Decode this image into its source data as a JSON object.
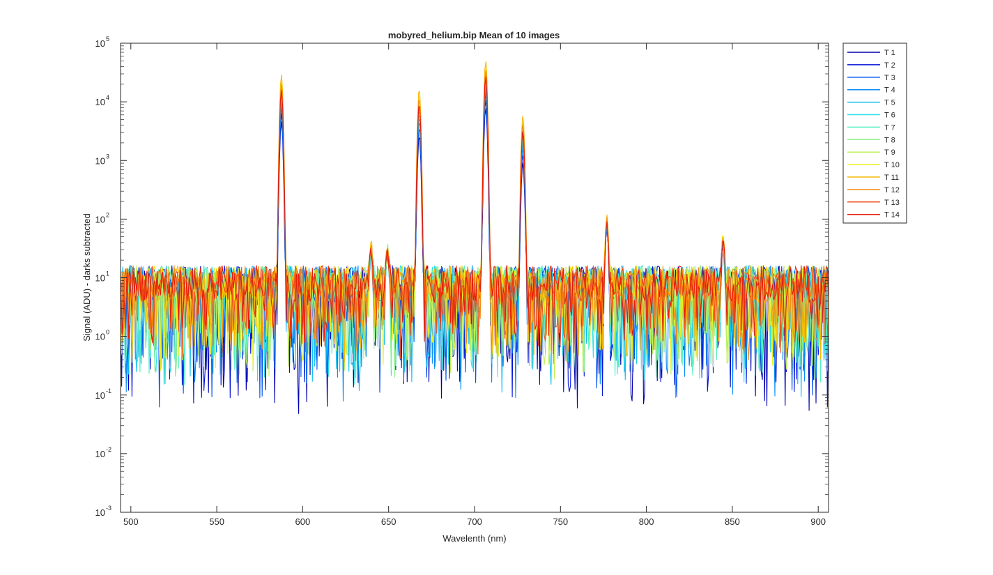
{
  "chart_data": {
    "type": "line",
    "title": "mobyred_helium.bip  Mean of 10 images",
    "xlabel": "Wavelenth (nm)",
    "ylabel": "Signal (ADU) - darks subtracted",
    "xlim": [
      494,
      906
    ],
    "ylim": [
      0.001,
      100000
    ],
    "yscale": "log",
    "grid": false,
    "legend_position": "outside-top-right",
    "x_ticks": [
      500,
      550,
      600,
      650,
      700,
      750,
      800,
      850,
      900
    ],
    "y_ticks": [
      {
        "value": 0.001,
        "mantissa": "10",
        "exponent": "-3"
      },
      {
        "value": 0.01,
        "mantissa": "10",
        "exponent": "-2"
      },
      {
        "value": 0.1,
        "mantissa": "10",
        "exponent": "-1"
      },
      {
        "value": 1,
        "mantissa": "10",
        "exponent": "0"
      },
      {
        "value": 10,
        "mantissa": "10",
        "exponent": "1"
      },
      {
        "value": 100,
        "mantissa": "10",
        "exponent": "2"
      },
      {
        "value": 1000,
        "mantissa": "10",
        "exponent": "3"
      },
      {
        "value": 10000,
        "mantissa": "10",
        "exponent": "4"
      },
      {
        "value": 100000,
        "mantissa": "10",
        "exponent": "5"
      }
    ],
    "baseline_level": 8,
    "emission_lines": [
      {
        "wavelength": 587.6,
        "peak": 29000
      },
      {
        "wavelength": 667.8,
        "peak": 17000
      },
      {
        "wavelength": 706.5,
        "peak": 50000
      },
      {
        "wavelength": 728.1,
        "peak": 5900
      },
      {
        "wavelength": 777.0,
        "peak": 110
      },
      {
        "wavelength": 844.6,
        "peak": 50
      },
      {
        "wavelength": 639.7,
        "peak": 35
      },
      {
        "wavelength": 649.3,
        "peak": 30
      }
    ],
    "series": [
      {
        "name": "T 1",
        "color": "#0000b0",
        "peak_scale": 0.16
      },
      {
        "name": "T 2",
        "color": "#0012d6",
        "peak_scale": 0.22
      },
      {
        "name": "T 3",
        "color": "#0050f0",
        "peak_scale": 0.28
      },
      {
        "name": "T 4",
        "color": "#0a8cf5",
        "peak_scale": 0.33
      },
      {
        "name": "T 5",
        "color": "#12bff0",
        "peak_scale": 0.38
      },
      {
        "name": "T 6",
        "color": "#2de0e8",
        "peak_scale": 0.44
      },
      {
        "name": "T 7",
        "color": "#52f0c0",
        "peak_scale": 0.5
      },
      {
        "name": "T 8",
        "color": "#8cf08c",
        "peak_scale": 0.57
      },
      {
        "name": "T 9",
        "color": "#c0f052",
        "peak_scale": 0.65
      },
      {
        "name": "T 10",
        "color": "#f0f01e",
        "peak_scale": 0.8
      },
      {
        "name": "T 11",
        "color": "#f7b800",
        "peak_scale": 1.0
      },
      {
        "name": "T 12",
        "color": "#f58c12",
        "peak_scale": 0.7
      },
      {
        "name": "T 13",
        "color": "#f0501e",
        "peak_scale": 0.5
      },
      {
        "name": "T 14",
        "color": "#e61e0a",
        "peak_scale": 0.55
      }
    ]
  }
}
